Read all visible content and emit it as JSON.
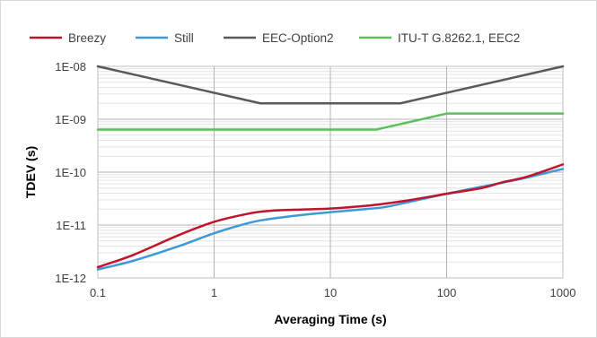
{
  "chart_data": {
    "type": "line",
    "xlabel": "Averaging Time (s)",
    "ylabel": "TDEV (s)",
    "xscale": "log",
    "yscale": "log",
    "xlim": [
      0.1,
      1000
    ],
    "ylim": [
      1e-12,
      1e-08
    ],
    "x_ticks": [
      "0.1",
      "1",
      "10",
      "100",
      "1000"
    ],
    "y_ticks": [
      "1E-12",
      "1E-11",
      "1E-10",
      "1E-09",
      "1E-08"
    ],
    "grid": true,
    "legend_position": "top",
    "series": [
      {
        "name": "Breezy",
        "color": "#c0142c",
        "points": [
          [
            0.1,
            1.6e-12
          ],
          [
            0.2,
            2.7e-12
          ],
          [
            0.5,
            6.5e-12
          ],
          [
            1,
            1.15e-11
          ],
          [
            2,
            1.65e-11
          ],
          [
            3,
            1.85e-11
          ],
          [
            5,
            1.95e-11
          ],
          [
            10,
            2.05e-11
          ],
          [
            20,
            2.3e-11
          ],
          [
            30,
            2.55e-11
          ],
          [
            50,
            3e-11
          ],
          [
            100,
            3.9e-11
          ],
          [
            200,
            5e-11
          ],
          [
            300,
            6.4e-11
          ],
          [
            500,
            8.3e-11
          ],
          [
            1000,
            1.4e-10
          ]
        ]
      },
      {
        "name": "Still",
        "color": "#3d9ad6",
        "points": [
          [
            0.1,
            1.45e-12
          ],
          [
            0.2,
            2.1e-12
          ],
          [
            0.5,
            4e-12
          ],
          [
            1,
            7e-12
          ],
          [
            2,
            1.1e-11
          ],
          [
            3,
            1.3e-11
          ],
          [
            5,
            1.5e-11
          ],
          [
            10,
            1.75e-11
          ],
          [
            20,
            2e-11
          ],
          [
            30,
            2.2e-11
          ],
          [
            50,
            2.8e-11
          ],
          [
            100,
            3.9e-11
          ],
          [
            200,
            5.3e-11
          ],
          [
            300,
            6.3e-11
          ],
          [
            500,
            8e-11
          ],
          [
            1000,
            1.15e-10
          ]
        ]
      },
      {
        "name": "EEC-Option2",
        "color": "#595959",
        "points": [
          [
            0.1,
            1e-08
          ],
          [
            2.5,
            2e-09
          ],
          [
            40,
            2e-09
          ],
          [
            1000,
            1e-08
          ]
        ]
      },
      {
        "name": "ITU-T G.8262.1, EEC2",
        "color": "#5cbf5c",
        "points": [
          [
            0.1,
            6.4e-10
          ],
          [
            25,
            6.4e-10
          ],
          [
            100,
            1.28e-09
          ],
          [
            1000,
            1.28e-09
          ]
        ]
      }
    ]
  }
}
